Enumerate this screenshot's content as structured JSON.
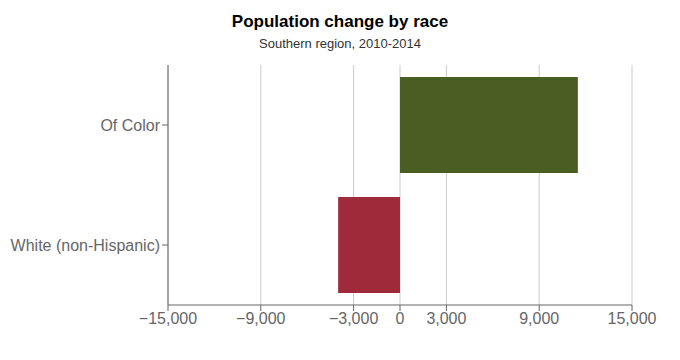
{
  "chart_data": {
    "type": "bar",
    "orientation": "horizontal",
    "title": "Population change by race",
    "subtitle": "Southern region, 2010-2014",
    "categories": [
      "White (non-Hispanic)",
      "Of Color"
    ],
    "values": [
      -4000,
      11500
    ],
    "colors": [
      "#9e2a3a",
      "#4a5e23"
    ],
    "xlim": [
      -15000,
      15000
    ],
    "xticks": [
      {
        "value": -15000,
        "label": "−15,000"
      },
      {
        "value": -9000,
        "label": "−9,000"
      },
      {
        "value": -3000,
        "label": "−3,000"
      },
      0,
      {
        "value": 3000,
        "label": "3,000"
      },
      {
        "value": 9000,
        "label": "9,000"
      },
      {
        "value": 15000,
        "label": "15,000"
      }
    ],
    "grid": true
  }
}
